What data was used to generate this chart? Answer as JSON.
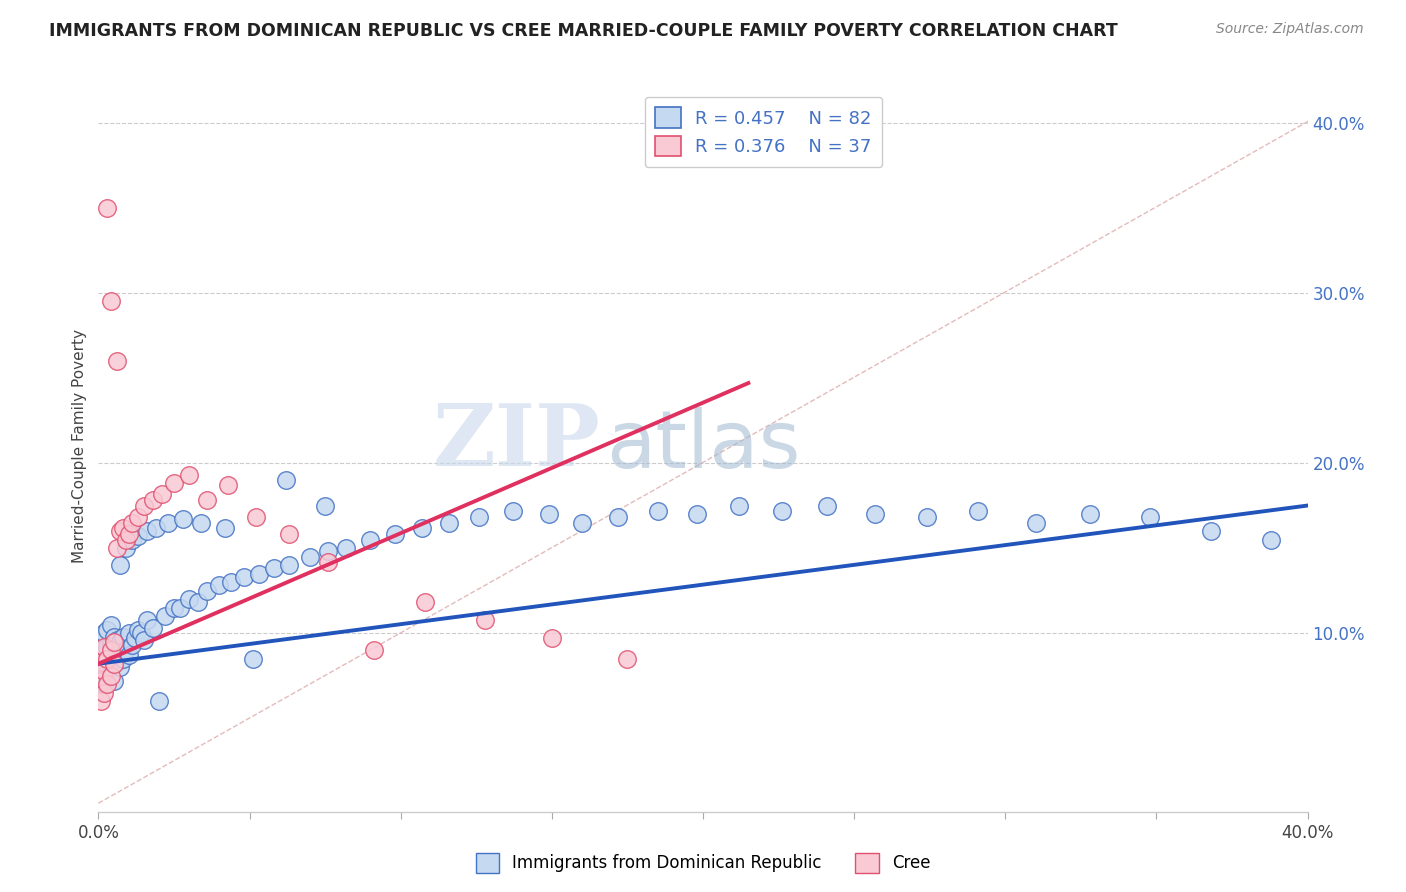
{
  "title": "IMMIGRANTS FROM DOMINICAN REPUBLIC VS CREE MARRIED-COUPLE FAMILY POVERTY CORRELATION CHART",
  "source": "Source: ZipAtlas.com",
  "ylabel": "Married-Couple Family Poverty",
  "legend_label_blue": "Immigrants from Dominican Republic",
  "legend_label_pink": "Cree",
  "R_blue": 0.457,
  "N_blue": 82,
  "R_pink": 0.376,
  "N_pink": 37,
  "xlim": [
    0.0,
    0.4
  ],
  "ylim": [
    -0.005,
    0.425
  ],
  "x_ticks": [
    0.0,
    0.05,
    0.1,
    0.15,
    0.2,
    0.25,
    0.3,
    0.35,
    0.4
  ],
  "y_ticks_right": [
    0.1,
    0.2,
    0.3,
    0.4
  ],
  "color_blue_fill": "#c5d9f0",
  "color_blue_edge": "#4472c4",
  "color_pink_fill": "#f9c9d4",
  "color_pink_edge": "#e05070",
  "trend_blue_color": "#2255bb",
  "trend_pink_color": "#e03060",
  "ref_line_color": "#ddaaaa",
  "trend_blue_x0": 0.0,
  "trend_blue_y0": 0.082,
  "trend_blue_x1": 0.4,
  "trend_blue_y1": 0.175,
  "trend_pink_x0": 0.0,
  "trend_pink_y0": 0.082,
  "trend_pink_x1": 0.215,
  "trend_pink_y1": 0.247,
  "watermark_text": "ZIPatlas",
  "watermark_color": "#ccd8e8",
  "blue_x": [
    0.001,
    0.001,
    0.001,
    0.002,
    0.002,
    0.002,
    0.003,
    0.003,
    0.003,
    0.004,
    0.004,
    0.004,
    0.005,
    0.005,
    0.005,
    0.006,
    0.006,
    0.007,
    0.007,
    0.008,
    0.008,
    0.009,
    0.01,
    0.01,
    0.011,
    0.012,
    0.013,
    0.014,
    0.015,
    0.016,
    0.018,
    0.02,
    0.022,
    0.025,
    0.027,
    0.03,
    0.033,
    0.036,
    0.04,
    0.044,
    0.048,
    0.053,
    0.058,
    0.063,
    0.07,
    0.076,
    0.082,
    0.09,
    0.098,
    0.107,
    0.116,
    0.126,
    0.137,
    0.149,
    0.16,
    0.172,
    0.185,
    0.198,
    0.212,
    0.226,
    0.241,
    0.257,
    0.274,
    0.291,
    0.31,
    0.328,
    0.348,
    0.368,
    0.388,
    0.007,
    0.009,
    0.011,
    0.013,
    0.016,
    0.019,
    0.023,
    0.028,
    0.034,
    0.042,
    0.051,
    0.062,
    0.075
  ],
  "blue_y": [
    0.075,
    0.085,
    0.095,
    0.07,
    0.088,
    0.1,
    0.078,
    0.092,
    0.102,
    0.08,
    0.093,
    0.105,
    0.072,
    0.087,
    0.098,
    0.083,
    0.096,
    0.08,
    0.095,
    0.085,
    0.098,
    0.09,
    0.087,
    0.1,
    0.093,
    0.097,
    0.102,
    0.1,
    0.096,
    0.108,
    0.103,
    0.06,
    0.11,
    0.115,
    0.115,
    0.12,
    0.118,
    0.125,
    0.128,
    0.13,
    0.133,
    0.135,
    0.138,
    0.14,
    0.145,
    0.148,
    0.15,
    0.155,
    0.158,
    0.162,
    0.165,
    0.168,
    0.172,
    0.17,
    0.165,
    0.168,
    0.172,
    0.17,
    0.175,
    0.172,
    0.175,
    0.17,
    0.168,
    0.172,
    0.165,
    0.17,
    0.168,
    0.16,
    0.155,
    0.14,
    0.15,
    0.155,
    0.157,
    0.16,
    0.162,
    0.165,
    0.167,
    0.165,
    0.162,
    0.085,
    0.19,
    0.175
  ],
  "pink_x": [
    0.001,
    0.001,
    0.001,
    0.002,
    0.002,
    0.002,
    0.003,
    0.003,
    0.004,
    0.004,
    0.005,
    0.005,
    0.006,
    0.007,
    0.008,
    0.009,
    0.01,
    0.011,
    0.013,
    0.015,
    0.018,
    0.021,
    0.025,
    0.03,
    0.036,
    0.043,
    0.052,
    0.063,
    0.076,
    0.091,
    0.108,
    0.128,
    0.15,
    0.175,
    0.003,
    0.004,
    0.006
  ],
  "pink_y": [
    0.06,
    0.072,
    0.083,
    0.065,
    0.078,
    0.092,
    0.07,
    0.085,
    0.075,
    0.09,
    0.082,
    0.095,
    0.15,
    0.16,
    0.162,
    0.155,
    0.158,
    0.165,
    0.168,
    0.175,
    0.178,
    0.182,
    0.188,
    0.193,
    0.178,
    0.187,
    0.168,
    0.158,
    0.142,
    0.09,
    0.118,
    0.108,
    0.097,
    0.085,
    0.35,
    0.295,
    0.26
  ]
}
